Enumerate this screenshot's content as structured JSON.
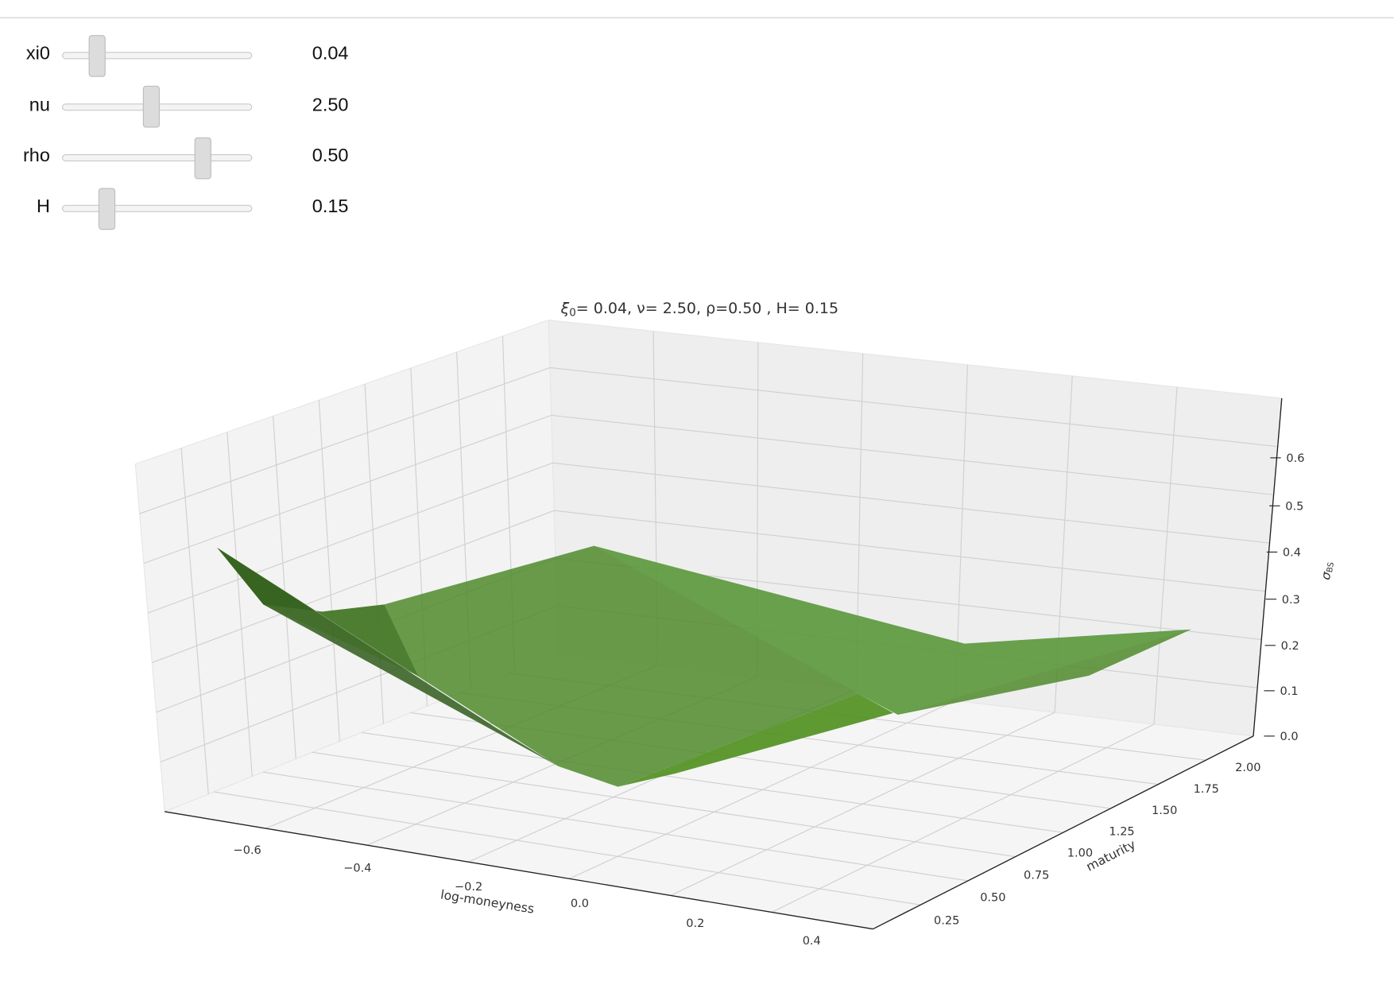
{
  "controls": [
    {
      "label": "xi0",
      "value": "0.04"
    },
    {
      "label": "nu",
      "value": "2.50"
    },
    {
      "label": "rho",
      "value": "0.50"
    },
    {
      "label": "H",
      "value": "0.15"
    }
  ],
  "plot": {
    "title": {
      "symbol": "ξ",
      "sub": "0",
      "rest": "= 0.04, ν= 2.50, ρ=0.50 , H= 0.15"
    },
    "x_label": "log-moneyness",
    "y_label": "maturity",
    "z_label": {
      "symbol": "σ",
      "sub": "BS"
    },
    "x_ticks": [
      "−0.6",
      "−0.4",
      "−0.2",
      "0.0",
      "0.2",
      "0.4"
    ],
    "y_ticks": [
      "0.25",
      "0.50",
      "0.75",
      "1.00",
      "1.25",
      "1.50",
      "1.75",
      "2.00"
    ],
    "z_ticks": [
      "0.0",
      "0.1",
      "0.2",
      "0.3",
      "0.4",
      "0.5",
      "0.6"
    ]
  }
}
